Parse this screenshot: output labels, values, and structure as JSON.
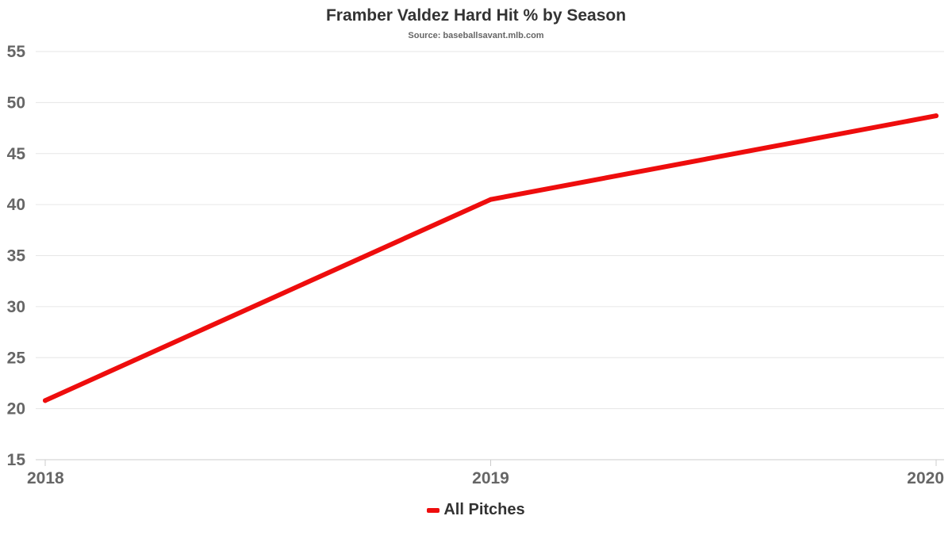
{
  "chart_data": {
    "type": "line",
    "title": "Framber Valdez Hard Hit % by Season",
    "subtitle": "Source: baseballsavant.mlb.com",
    "xlabel": "",
    "ylabel": "",
    "categories": [
      "2018",
      "2019",
      "2020"
    ],
    "series": [
      {
        "name": "All Pitches",
        "values": [
          20.8,
          40.5,
          48.7
        ],
        "color": "#ee0d0d"
      }
    ],
    "ylim": [
      15,
      55
    ],
    "yticks": [
      15,
      20,
      25,
      30,
      35,
      40,
      45,
      50,
      55
    ],
    "grid": true,
    "legend_position": "bottom-center"
  }
}
